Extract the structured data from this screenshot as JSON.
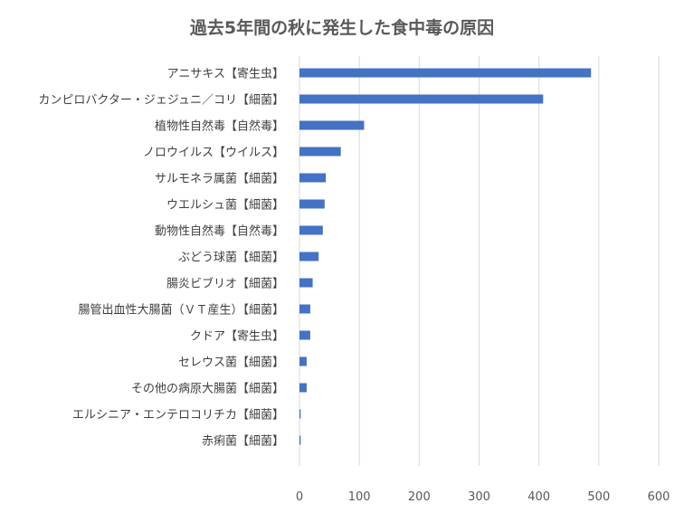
{
  "chart_data": {
    "type": "bar",
    "orientation": "horizontal",
    "title": "過去5年間の秋に発生した食中毒の原因",
    "xlabel": "",
    "ylabel": "",
    "xlim": [
      0,
      600
    ],
    "ticks": [
      0,
      100,
      200,
      300,
      400,
      500,
      600
    ],
    "grid": true,
    "color": "#4472c4",
    "categories": [
      "アニサキス【寄生虫】",
      "カンピロバクター・ジェジュニ／コリ【細菌】",
      "植物性自然毒【自然毒】",
      "ノロウイルス【ウイルス】",
      "サルモネラ属菌【細菌】",
      "ウエルシュ菌【細菌】",
      "動物性自然毒【自然毒】",
      "ぶどう球菌【細菌】",
      "腸炎ビブリオ【細菌】",
      "腸管出血性大腸菌（ＶＴ産生）【細菌】",
      "クドア【寄生虫】",
      "セレウス菌【細菌】",
      "その他の病原大腸菌【細菌】",
      "エルシニア・エンテロコリチカ【細菌】",
      "赤痢菌【細菌】"
    ],
    "values": [
      487,
      407,
      108,
      69,
      44,
      42,
      39,
      32,
      22,
      18,
      18,
      12,
      12,
      2,
      2
    ]
  }
}
